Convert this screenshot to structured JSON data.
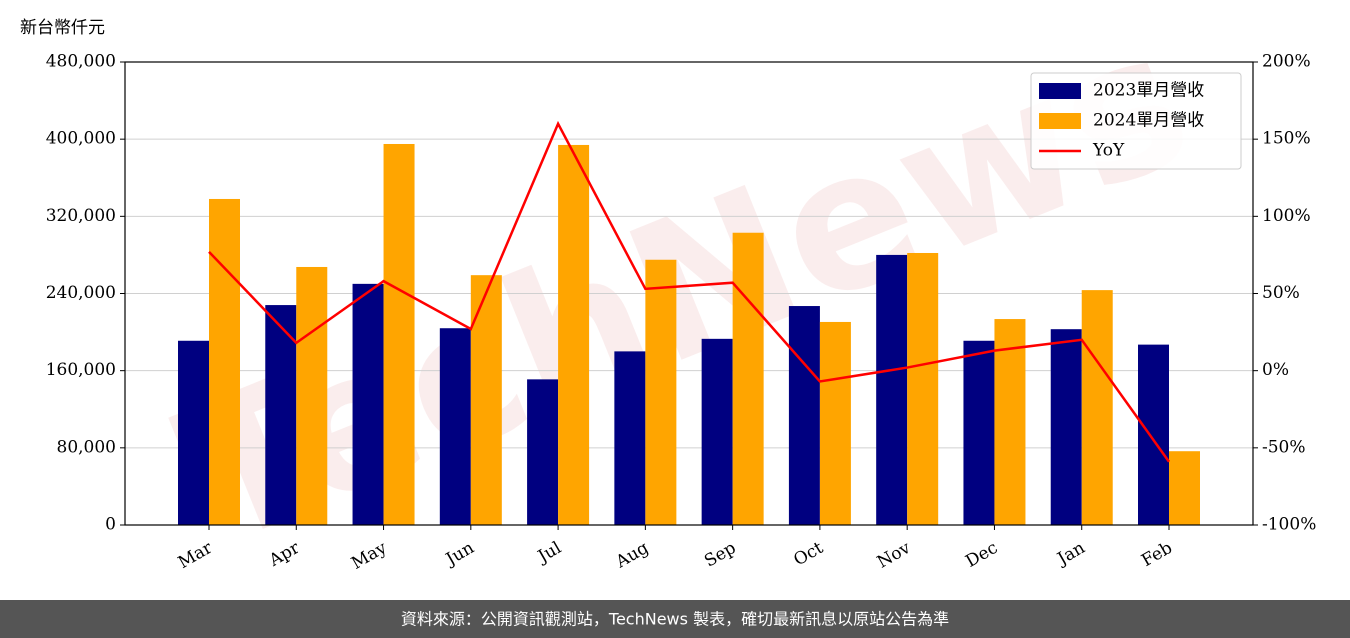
{
  "chart_data": {
    "type": "bar_line",
    "unit_label": "新台幣仟元",
    "watermark": "TechNews",
    "categories": [
      "Mar",
      "Apr",
      "May",
      "Jun",
      "Jul",
      "Aug",
      "Sep",
      "Oct",
      "Nov",
      "Dec",
      "Jan",
      "Feb"
    ],
    "series": [
      {
        "name": "2023單月營收",
        "color": "#000080",
        "values": [
          191000,
          228000,
          250000,
          204000,
          151000,
          180000,
          193000,
          227000,
          280000,
          191000,
          203000,
          187000
        ]
      },
      {
        "name": "2024單月營收",
        "color": "#ffa500",
        "values": [
          338000,
          267500,
          395000,
          259000,
          394000,
          275000,
          303000,
          210500,
          282000,
          213500,
          243500,
          76500
        ]
      },
      {
        "name": "YoY",
        "color": "#ff0000",
        "axis": "y2",
        "type": "line",
        "values": [
          77,
          18,
          58,
          27,
          160,
          53,
          57,
          -7,
          2,
          13,
          20,
          -59
        ]
      }
    ],
    "ylim": [
      0,
      480000
    ],
    "yticks": [
      0,
      {
        "value": 80000,
        "label": "80,000"
      },
      {
        "value": 160000,
        "label": "160,000"
      },
      {
        "value": 240000,
        "label": "240,000"
      },
      {
        "value": 320000,
        "label": "320,000"
      },
      {
        "value": 400000,
        "label": "400,000"
      },
      {
        "value": 480000,
        "label": "480,000"
      }
    ],
    "y2lim": [
      -100,
      200
    ],
    "y2ticks": [
      {
        "value": -100,
        "label": "-100%"
      },
      {
        "value": -50,
        "label": "-50%"
      },
      {
        "value": 0,
        "label": "0%"
      },
      {
        "value": 50,
        "label": "50%"
      },
      {
        "value": 100,
        "label": "100%"
      },
      {
        "value": 150,
        "label": "150%"
      },
      {
        "value": 200,
        "label": "200%"
      }
    ],
    "grid": true,
    "legend": "upper right",
    "footer": "資料來源：公開資訊觀測站，TechNews 製表，確切最新訊息以原站公告為準"
  }
}
